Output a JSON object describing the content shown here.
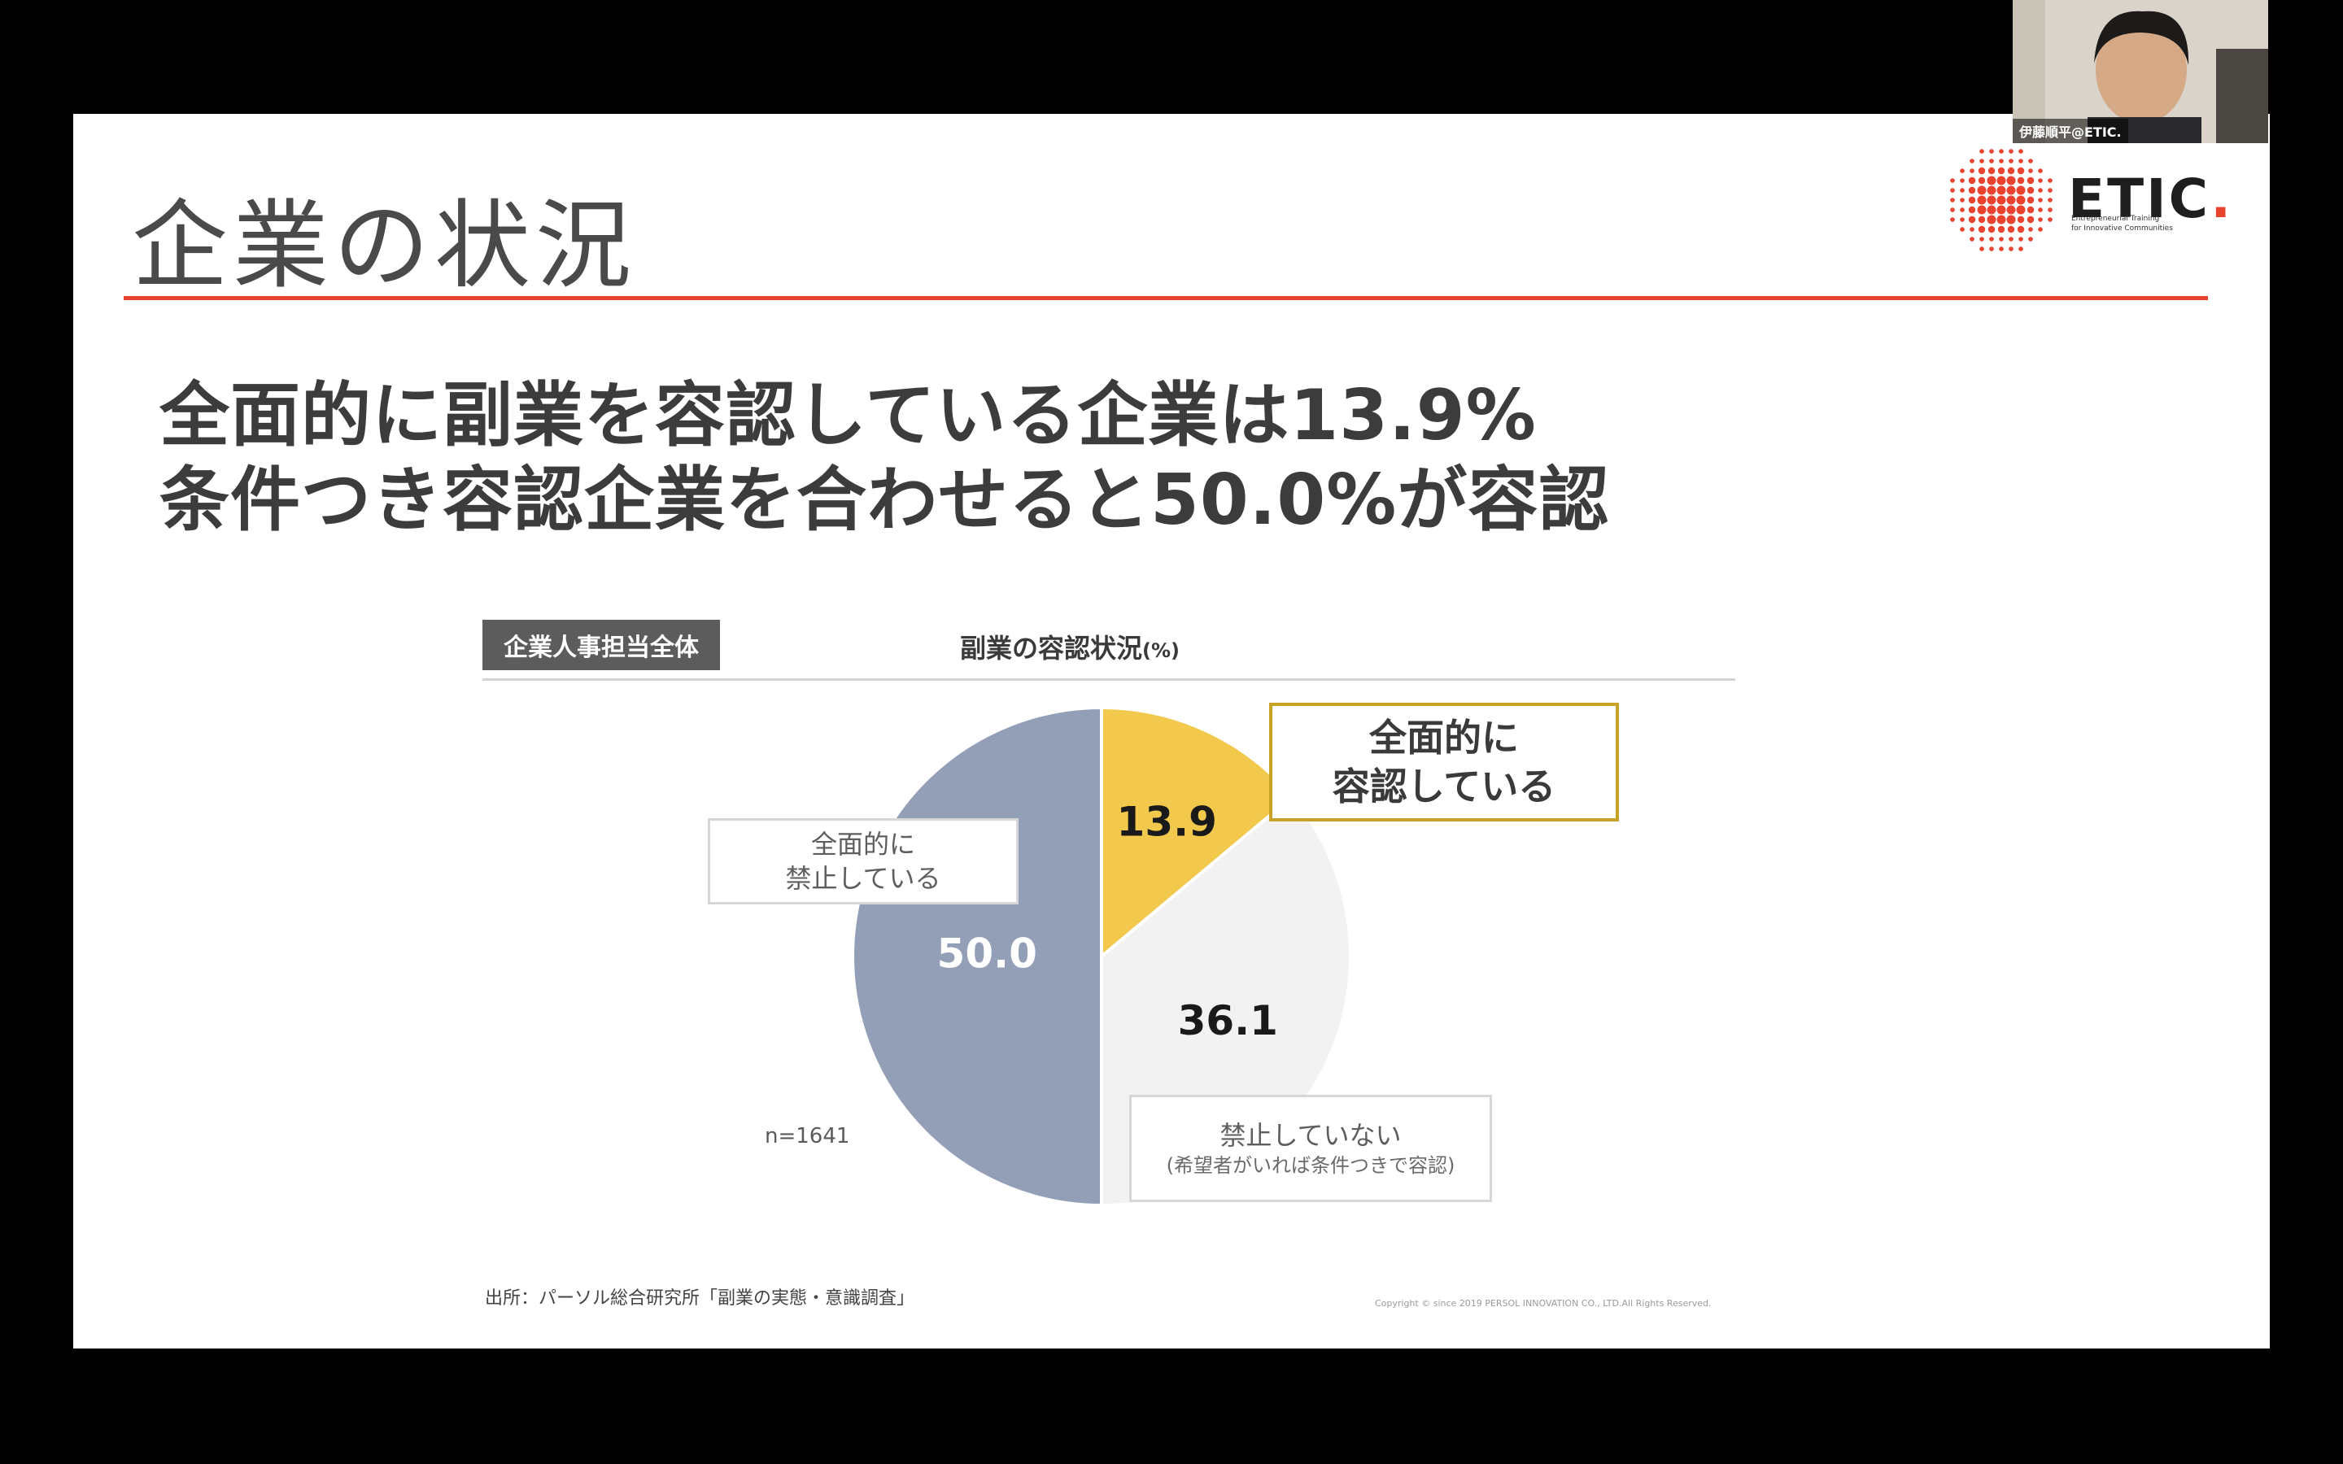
{
  "slide": {
    "title": "企業の状況",
    "headline_line1": "全面的に副業を容認している企業は13.9%",
    "headline_line2": "条件つき容認企業を合わせると50.0%が容認",
    "logo": {
      "name": "ETIC",
      "tagline_line1": "Entrepreneurial Training",
      "tagline_line2": "for Innovative Communities"
    }
  },
  "chart_panel": {
    "tag": "企業人事担当全体",
    "heading": "副業の容認状況",
    "heading_unit": "(%)",
    "callout_allowed_line1": "全面的に",
    "callout_allowed_line2": "容認している",
    "callout_prohibited_line1": "全面的に",
    "callout_prohibited_line2": "禁止している",
    "callout_notprohibited_line1": "禁止していない",
    "callout_notprohibited_line2": "(希望者がいれば条件つきで容認)",
    "sample_size": "n=1641",
    "source": "出所：パーソル総合研究所「副業の実態・意識調査」",
    "copyright": "Copyright © since 2019 PERSOL INNOVATION CO., LTD.All Rights Reserved."
  },
  "chart_data": {
    "type": "pie",
    "title": "副業の容認状況(%)",
    "slices": [
      {
        "label": "全面的に容認している",
        "value": 13.9,
        "display": "13.9",
        "color": "#f2c94c",
        "label_color": "#1a1a1a"
      },
      {
        "label": "禁止していない（希望者がいれば条件つきで容認）",
        "value": 36.1,
        "display": "36.1",
        "color": "#f2f2f2",
        "label_color": "#1a1a1a"
      },
      {
        "label": "全面的に禁止している",
        "value": 50.0,
        "display": "50.0",
        "color": "#939fb7",
        "label_color": "#ffffff"
      }
    ],
    "sample_size": "n=1641"
  },
  "webcam": {
    "participant_name": "伊藤順平@ETIC."
  },
  "colors": {
    "accent": "#e8432f",
    "highlight_border": "#c8a227"
  }
}
